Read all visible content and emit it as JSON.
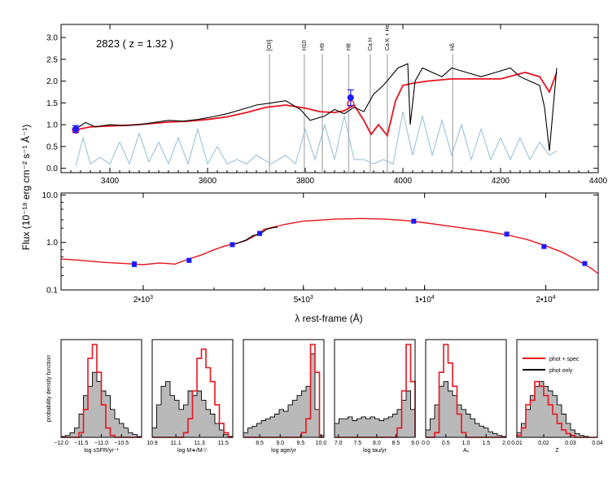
{
  "figure": {
    "object_label": "2823 ( z = 1.32 )",
    "ylabel": "Flux (10⁻¹⁸ erg cm⁻² s⁻¹ Å⁻¹)",
    "xlabel": "λ rest-frame (Å)",
    "colors": {
      "model": "#e8141e",
      "data": "#000000",
      "sky": "#9ac3d8",
      "photometry": "#1a1aff",
      "hist_phot_only": "#b9b9b9",
      "line_marker": "#bdbdbd"
    }
  },
  "chart_data": [
    {
      "type": "line",
      "name": "spectrum-zoom",
      "xlim": [
        3300,
        4400
      ],
      "ylim": [
        -0.1,
        3.3
      ],
      "xticks": [
        "3400",
        "3600",
        "3800",
        "4000",
        "4200",
        "4400"
      ],
      "yticks": [
        "0.0",
        "0.5",
        "1.0",
        "1.5",
        "2.0",
        "2.5",
        "3.0"
      ],
      "spectral_lines": [
        {
          "label": "[OII]",
          "x": 3727
        },
        {
          "label": "H10",
          "x": 3798
        },
        {
          "label": "H9",
          "x": 3835
        },
        {
          "label": "H8",
          "x": 3889
        },
        {
          "label": "Ca H",
          "x": 3933
        },
        {
          "label": "Ca K + Hε",
          "x": 3968
        },
        {
          "label": "Hδ",
          "x": 4102
        }
      ],
      "series": [
        {
          "kind": "model",
          "x": [
            3330,
            3360,
            3400,
            3440,
            3480,
            3520,
            3560,
            3600,
            3640,
            3680,
            3720,
            3760,
            3800,
            3830,
            3860,
            3880,
            3900,
            3920,
            3935,
            3950,
            3968,
            3985,
            4000,
            4020,
            4050,
            4100,
            4150,
            4200,
            4250,
            4280,
            4300,
            4315
          ],
          "y": [
            0.88,
            0.95,
            0.97,
            0.99,
            1.02,
            1.06,
            1.08,
            1.12,
            1.18,
            1.28,
            1.4,
            1.45,
            1.38,
            1.3,
            1.28,
            1.32,
            1.45,
            1.1,
            0.78,
            1.0,
            0.75,
            1.55,
            1.9,
            1.95,
            2.0,
            2.05,
            2.05,
            2.05,
            2.2,
            2.1,
            1.75,
            2.2
          ]
        },
        {
          "kind": "data",
          "x": [
            3330,
            3350,
            3370,
            3400,
            3430,
            3460,
            3490,
            3520,
            3550,
            3580,
            3610,
            3640,
            3670,
            3700,
            3730,
            3760,
            3790,
            3810,
            3840,
            3860,
            3880,
            3900,
            3920,
            3940,
            3960,
            3990,
            4010,
            4015,
            4025,
            4040,
            4060,
            4080,
            4100,
            4130,
            4160,
            4190,
            4220,
            4240,
            4260,
            4280,
            4290,
            4300,
            4315
          ],
          "y": [
            0.9,
            1.05,
            0.95,
            1.0,
            0.98,
            1.0,
            1.05,
            1.1,
            1.08,
            1.12,
            1.18,
            1.25,
            1.35,
            1.45,
            1.5,
            1.55,
            1.35,
            1.1,
            1.2,
            1.35,
            1.25,
            1.4,
            1.3,
            1.7,
            1.9,
            2.3,
            2.4,
            1.0,
            2.0,
            2.3,
            2.2,
            2.1,
            2.3,
            2.2,
            2.1,
            2.2,
            2.3,
            2.1,
            2.0,
            1.9,
            1.4,
            0.4,
            2.3
          ]
        },
        {
          "kind": "sky",
          "x": [
            3330,
            3345,
            3360,
            3380,
            3400,
            3420,
            3440,
            3460,
            3480,
            3500,
            3520,
            3540,
            3560,
            3580,
            3600,
            3620,
            3640,
            3660,
            3680,
            3700,
            3730,
            3760,
            3780,
            3800,
            3820,
            3840,
            3860,
            3880,
            3900,
            3920,
            3940,
            3960,
            3980,
            4000,
            4020,
            4040,
            4060,
            4080,
            4100,
            4120,
            4140,
            4160,
            4180,
            4200,
            4220,
            4240,
            4260,
            4280,
            4300,
            4315
          ],
          "y": [
            0.05,
            0.7,
            0.1,
            0.25,
            0.1,
            0.6,
            0.1,
            0.8,
            0.15,
            0.6,
            0.1,
            0.7,
            0.1,
            0.9,
            0.1,
            0.5,
            0.1,
            0.2,
            0.1,
            0.3,
            0.1,
            0.3,
            0.1,
            0.9,
            0.2,
            1.0,
            0.2,
            1.2,
            0.2,
            0.2,
            0.1,
            0.2,
            0.1,
            1.3,
            0.3,
            1.2,
            0.3,
            1.1,
            0.3,
            1.0,
            0.2,
            0.9,
            0.2,
            0.7,
            0.2,
            0.7,
            0.2,
            0.6,
            0.3,
            0.4
          ]
        }
      ],
      "photometry": [
        {
          "x": 3330,
          "y": 0.9,
          "err": 0.08
        },
        {
          "x": 3893,
          "y": 1.62,
          "err": 0.18
        }
      ],
      "model_photometry": [
        {
          "x": 3330,
          "y": 0.88
        },
        {
          "x": 3893,
          "y": 1.48
        }
      ]
    },
    {
      "type": "line",
      "name": "full-sed",
      "xscale": "log",
      "yscale": "log",
      "xlim": [
        1250,
        27000
      ],
      "ylim": [
        0.1,
        11
      ],
      "xticks": [
        {
          "label": "2•",
          "exp": "3",
          "v": 2000
        },
        {
          "label": "5•",
          "exp": "3",
          "v": 5000
        },
        {
          "label": "1•",
          "exp": "4",
          "v": 10000
        },
        {
          "label": "2•",
          "exp": "4",
          "v": 20000
        }
      ],
      "yticks": [
        {
          "label": "0.1",
          "v": 0.1
        },
        {
          "label": "1.0",
          "v": 1.0
        },
        {
          "label": "10.0",
          "v": 10.0
        }
      ],
      "model": {
        "x": [
          1250,
          1400,
          1600,
          1800,
          2000,
          2200,
          2400,
          2600,
          2800,
          3000,
          3200,
          3400,
          3600,
          3800,
          4000,
          4500,
          5000,
          6000,
          7000,
          8000,
          9000,
          10000,
          12000,
          14000,
          16000,
          18000,
          20000,
          22000,
          24000,
          26000,
          27000
        ],
        "y": [
          0.45,
          0.42,
          0.38,
          0.36,
          0.34,
          0.37,
          0.35,
          0.45,
          0.55,
          0.7,
          0.85,
          0.95,
          1.1,
          1.4,
          1.9,
          2.4,
          2.8,
          3.1,
          3.2,
          3.1,
          2.9,
          2.6,
          2.1,
          1.75,
          1.45,
          1.15,
          0.85,
          0.62,
          0.42,
          0.28,
          0.22
        ]
      },
      "data": {
        "x": [
          3330,
          3450,
          3600,
          3750,
          3900,
          4050,
          4200,
          4315
        ],
        "y": [
          0.9,
          0.98,
          1.12,
          1.4,
          1.5,
          1.9,
          2.05,
          2.1
        ]
      },
      "photometry": [
        {
          "x": 1900,
          "y": 0.35,
          "err": 0.04
        },
        {
          "x": 2600,
          "y": 0.42,
          "err": 0.04
        },
        {
          "x": 3330,
          "y": 0.9,
          "err": 0.08
        },
        {
          "x": 3893,
          "y": 1.55,
          "err": 0.15
        },
        {
          "x": 9400,
          "y": 2.8,
          "err": 0.2
        },
        {
          "x": 16000,
          "y": 1.5,
          "err": 0.1
        },
        {
          "x": 19800,
          "y": 0.82,
          "err": 0.06
        },
        {
          "x": 25000,
          "y": 0.36,
          "err": 0.03
        }
      ]
    },
    {
      "type": "histogram",
      "name": "pdf-panels",
      "ylabel": "probability density function",
      "legend": [
        {
          "label": "phot + spec",
          "color": "#e8141e"
        },
        {
          "label": "phot only",
          "color": "#000000"
        }
      ],
      "panels": [
        {
          "xlabel": "log sSFR/yr⁻¹",
          "xlim": [
            -12.0,
            -10.0
          ],
          "ticks": [
            "−12.0",
            "−11.5",
            "−11.0",
            "−10.5"
          ],
          "tickvals": [
            -12,
            -11.5,
            -11,
            -10.5
          ],
          "phot_only": [
            0.01,
            0.02,
            0.05,
            0.1,
            0.25,
            0.45,
            0.55,
            0.7,
            0.6,
            0.5,
            0.45,
            0.3,
            0.2,
            0.15,
            0.1,
            0.05,
            0.03,
            0.01
          ],
          "phot_spec": [
            0,
            0,
            0,
            0,
            0.05,
            0.3,
            0.85,
            1.0,
            0.7,
            0.35,
            0.1,
            0.02,
            0,
            0,
            0,
            0,
            0,
            0
          ]
        },
        {
          "xlabel": "log M∗/M☉",
          "xlim": [
            10.9,
            11.58
          ],
          "ticks": [
            "10.9",
            "11.1",
            "11.3",
            "11.5"
          ],
          "tickvals": [
            10.9,
            11.1,
            11.3,
            11.5
          ],
          "phot_only": [
            0.1,
            0.35,
            0.55,
            0.6,
            0.45,
            0.4,
            0.3,
            0.35,
            0.5,
            0.45,
            0.5,
            0.4,
            0.3,
            0.25,
            0.15,
            0.08,
            0.03,
            0.01
          ],
          "phot_spec": [
            0,
            0,
            0,
            0,
            0,
            0,
            0,
            0.05,
            0.2,
            0.5,
            0.85,
            0.95,
            0.75,
            0.6,
            0.35,
            0.15,
            0.05,
            0
          ]
        },
        {
          "xlabel": "log age/yr",
          "xlim": [
            8.1,
            10.07
          ],
          "ticks": [
            "8.5",
            "9.0",
            "9.5",
            "10.0"
          ],
          "tickvals": [
            8.5,
            9,
            9.5,
            10
          ],
          "phot_only": [
            0.05,
            0.1,
            0.12,
            0.15,
            0.18,
            0.2,
            0.22,
            0.25,
            0.3,
            0.28,
            0.35,
            0.4,
            0.45,
            0.5,
            0.55,
            0.9,
            0.3,
            0.02
          ],
          "phot_spec": [
            0,
            0,
            0,
            0,
            0,
            0,
            0,
            0,
            0,
            0,
            0,
            0,
            0,
            0.05,
            0.2,
            1.0,
            0.7,
            0
          ]
        },
        {
          "xlabel": "log tau/yr",
          "xlim": [
            6.9,
            9.0
          ],
          "ticks": [
            "7.0",
            "7.5",
            "8.0",
            "8.5",
            "9.0"
          ],
          "tickvals": [
            7,
            7.5,
            8,
            8.5,
            9
          ],
          "phot_only": [
            0.15,
            0.2,
            0.2,
            0.22,
            0.18,
            0.2,
            0.22,
            0.2,
            0.22,
            0.2,
            0.18,
            0.2,
            0.22,
            0.25,
            0.3,
            0.4,
            0.5,
            0.3
          ],
          "phot_spec": [
            0,
            0,
            0,
            0,
            0,
            0,
            0,
            0,
            0,
            0,
            0,
            0,
            0,
            0,
            0.1,
            0.5,
            1.0,
            0.6
          ]
        },
        {
          "xlabel": "Aᵥ",
          "xlim": [
            0.0,
            2.0
          ],
          "ticks": [
            "0.0",
            "0.5",
            "1.0",
            "1.5",
            "2.0"
          ],
          "tickvals": [
            0,
            0.5,
            1,
            1.5,
            2
          ],
          "phot_only": [
            0.08,
            0.2,
            0.35,
            0.55,
            0.6,
            0.5,
            0.45,
            0.35,
            0.3,
            0.25,
            0.2,
            0.15,
            0.12,
            0.1,
            0.06,
            0.04,
            0.02,
            0.01
          ],
          "phot_spec": [
            0,
            0,
            0.05,
            0.7,
            1.0,
            0.8,
            0.55,
            0.25,
            0.05,
            0,
            0,
            0,
            0,
            0,
            0,
            0,
            0,
            0
          ]
        },
        {
          "xlabel": "Z",
          "xlim": [
            0.01,
            0.04
          ],
          "ticks": [
            "0.01",
            "0.02",
            "0.03",
            "0.04"
          ],
          "tickvals": [
            0.01,
            0.02,
            0.03,
            0.04
          ],
          "phot_only": [
            0.05,
            0.15,
            0.3,
            0.45,
            0.55,
            0.6,
            0.55,
            0.5,
            0.45,
            0.35,
            0.25,
            0.15,
            0.08,
            0.04,
            0.02,
            0.01,
            0,
            0
          ],
          "phot_spec": [
            0.02,
            0.1,
            0.35,
            0.4,
            0.6,
            0.55,
            0.45,
            0.35,
            0.25,
            0.15,
            0.08,
            0.04,
            0.02,
            0,
            0,
            0,
            0,
            0
          ]
        }
      ]
    }
  ]
}
